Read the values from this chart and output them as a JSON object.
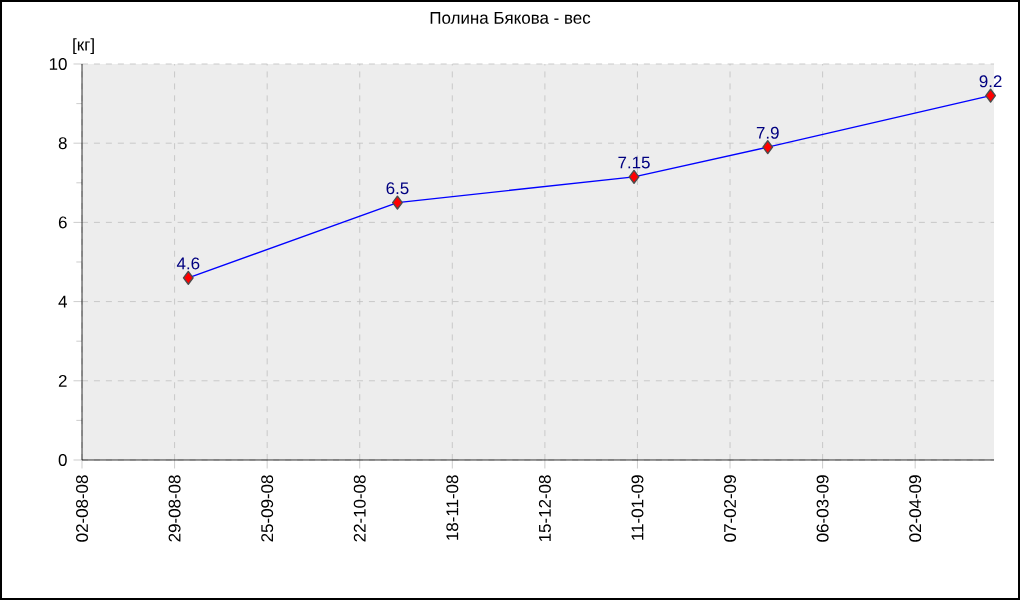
{
  "chart_data": {
    "type": "line",
    "title": "Полина Бякова - вес",
    "ylabel": "[кг]",
    "x": [
      "2008-09-02",
      "2008-11-02",
      "2009-01-10",
      "2009-02-18",
      "2009-04-24"
    ],
    "series": [
      {
        "color": "#0000ff",
        "values": [
          4.6,
          6.5,
          7.15,
          7.9,
          9.2
        ]
      }
    ],
    "xlim": [
      "2008-08-02",
      "2009-04-25"
    ],
    "xticks": [
      {
        "value": "2008-08-02",
        "label": "02-08-08"
      },
      {
        "value": "2008-08-29",
        "label": "29-08-08"
      },
      {
        "value": "2008-09-25",
        "label": "25-09-08"
      },
      {
        "value": "2008-10-22",
        "label": "22-10-08"
      },
      {
        "value": "2008-11-18",
        "label": "18-11-08"
      },
      {
        "value": "2008-12-15",
        "label": "15-12-08"
      },
      {
        "value": "2009-01-11",
        "label": "11-01-09"
      },
      {
        "value": "2009-02-07",
        "label": "07-02-09"
      },
      {
        "value": "2009-03-06",
        "label": "06-03-09"
      },
      {
        "value": "2009-04-02",
        "label": "02-04-09"
      }
    ],
    "ylim": [
      0,
      10
    ],
    "yticks": [
      0,
      2,
      4,
      6,
      8,
      10
    ],
    "grid": true,
    "marker": "diamond",
    "line_style": "solid",
    "data_labels": true
  }
}
